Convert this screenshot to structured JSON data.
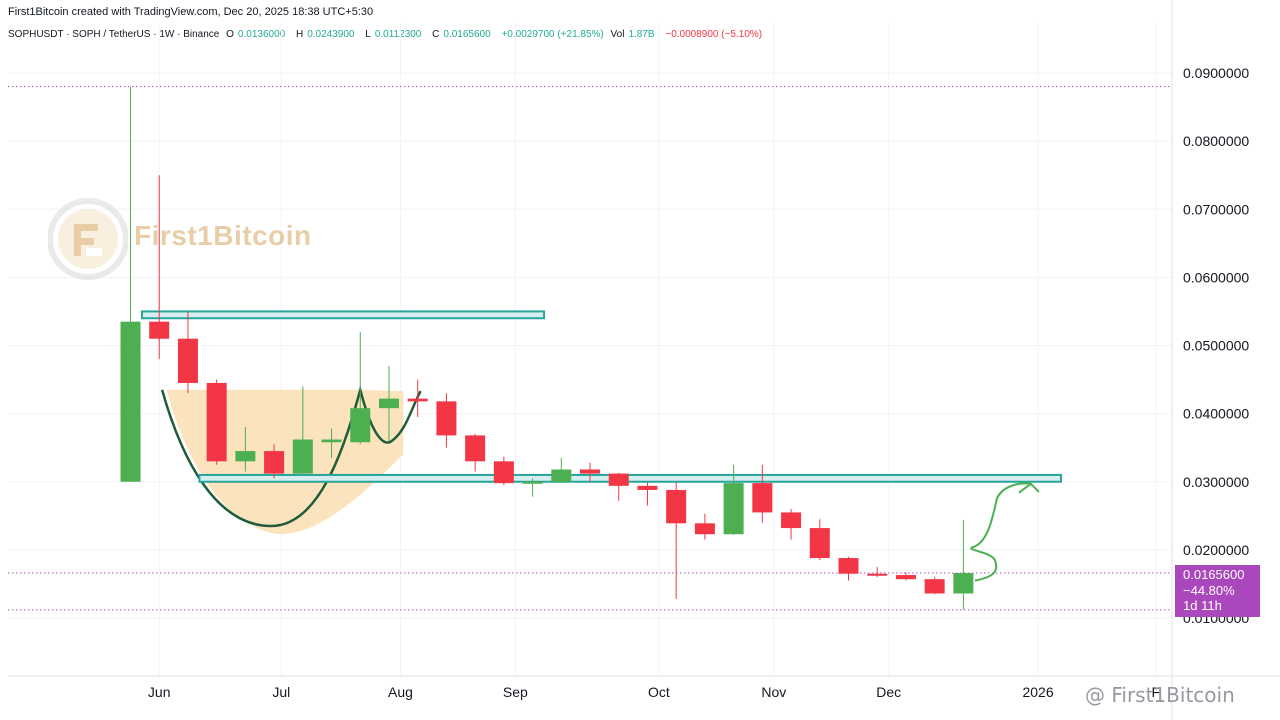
{
  "header": {
    "text": "First1Bitcoin created with TradingView.com, Dec 20, 2025 18:38 UTC+5:30"
  },
  "legend": {
    "symbol": "SOPHUSDT · SOPH / TetherUS · 1W · Binance",
    "o_label": "O",
    "o_value": "0.0136000",
    "h_label": "H",
    "h_value": "0.0243900",
    "l_label": "L",
    "l_value": "0.0112300",
    "c_label": "C",
    "c_value": "0.0165600",
    "change": "+0.0029700 (+21.85%)",
    "vol_label": "Vol",
    "vol_value": "1.87B",
    "vol_change": "−0.0008900 (−5.10%)"
  },
  "watermark": {
    "text": "First1Bitcoin"
  },
  "footer_watermark": {
    "text": "@ First1Bitcoin"
  },
  "price_badge": {
    "price": "0.0165600",
    "change": "−44.80%",
    "countdown": "1d 11h"
  },
  "colors": {
    "up": "#4caf50",
    "down": "#f23645",
    "zone": "#26a69a",
    "cup_fill": "#fbe3bd",
    "badge": "#ab47bc",
    "dotted": "#9c27b0"
  },
  "chart_data": {
    "type": "candlestick",
    "timeframe": "1W",
    "y_ticks": [
      0.09,
      0.08,
      0.07,
      0.06,
      0.05,
      0.04,
      0.03,
      0.02,
      0.01
    ],
    "y_tick_labels": [
      "0.0900000",
      "0.0800000",
      "0.0700000",
      "0.0600000",
      "0.0500000",
      "0.0400000",
      "0.0300000",
      "0.0200000",
      "0.0100000"
    ],
    "ylim": [
      0.0,
      0.098
    ],
    "x_labels": [
      {
        "label": "Jun",
        "week": 1
      },
      {
        "label": "Jul",
        "week": 5.25
      },
      {
        "label": "Aug",
        "week": 9.4
      },
      {
        "label": "Sep",
        "week": 13.4
      },
      {
        "label": "Oct",
        "week": 18.4
      },
      {
        "label": "Nov",
        "week": 22.4
      },
      {
        "label": "Dec",
        "week": 26.4
      },
      {
        "label": "2026",
        "week": 31.6
      },
      {
        "label": "F",
        "week": 35.7
      }
    ],
    "candles": [
      {
        "o": 0.03,
        "h": 0.088,
        "l": 0.03,
        "c": 0.0535
      },
      {
        "o": 0.0535,
        "h": 0.075,
        "l": 0.048,
        "c": 0.051
      },
      {
        "o": 0.051,
        "h": 0.055,
        "l": 0.043,
        "c": 0.0445
      },
      {
        "o": 0.0445,
        "h": 0.045,
        "l": 0.0325,
        "c": 0.033
      },
      {
        "o": 0.033,
        "h": 0.038,
        "l": 0.0315,
        "c": 0.0345
      },
      {
        "o": 0.0345,
        "h": 0.0355,
        "l": 0.0305,
        "c": 0.0312
      },
      {
        "o": 0.0312,
        "h": 0.044,
        "l": 0.031,
        "c": 0.0362
      },
      {
        "o": 0.0358,
        "h": 0.0378,
        "l": 0.0335,
        "c": 0.0362
      },
      {
        "o": 0.0358,
        "h": 0.052,
        "l": 0.0355,
        "c": 0.0408
      },
      {
        "o": 0.0408,
        "h": 0.047,
        "l": 0.036,
        "c": 0.0422
      },
      {
        "o": 0.0422,
        "h": 0.045,
        "l": 0.0395,
        "c": 0.0418
      },
      {
        "o": 0.0418,
        "h": 0.043,
        "l": 0.035,
        "c": 0.0368
      },
      {
        "o": 0.0368,
        "h": 0.037,
        "l": 0.0315,
        "c": 0.033
      },
      {
        "o": 0.033,
        "h": 0.0337,
        "l": 0.0295,
        "c": 0.0298
      },
      {
        "o": 0.0298,
        "h": 0.0305,
        "l": 0.0278,
        "c": 0.03
      },
      {
        "o": 0.03,
        "h": 0.0335,
        "l": 0.0298,
        "c": 0.0318
      },
      {
        "o": 0.0318,
        "h": 0.0328,
        "l": 0.03,
        "c": 0.0312
      },
      {
        "o": 0.0312,
        "h": 0.0313,
        "l": 0.0272,
        "c": 0.0294
      },
      {
        "o": 0.0294,
        "h": 0.0299,
        "l": 0.0265,
        "c": 0.0288
      },
      {
        "o": 0.0288,
        "h": 0.0299,
        "l": 0.0128,
        "c": 0.0239
      },
      {
        "o": 0.0239,
        "h": 0.0253,
        "l": 0.0215,
        "c": 0.0223
      },
      {
        "o": 0.0223,
        "h": 0.0325,
        "l": 0.0222,
        "c": 0.0298
      },
      {
        "o": 0.0298,
        "h": 0.0325,
        "l": 0.024,
        "c": 0.0255
      },
      {
        "o": 0.0255,
        "h": 0.026,
        "l": 0.0215,
        "c": 0.0232
      },
      {
        "o": 0.0232,
        "h": 0.0245,
        "l": 0.0185,
        "c": 0.0188
      },
      {
        "o": 0.0188,
        "h": 0.019,
        "l": 0.0155,
        "c": 0.0165
      },
      {
        "o": 0.0165,
        "h": 0.0175,
        "l": 0.016,
        "c": 0.0163
      },
      {
        "o": 0.0163,
        "h": 0.0167,
        "l": 0.0155,
        "c": 0.0157
      },
      {
        "o": 0.0157,
        "h": 0.016,
        "l": 0.0135,
        "c": 0.0136
      },
      {
        "o": 0.0136,
        "h": 0.0244,
        "l": 0.0112,
        "c": 0.0166
      }
    ],
    "zones": [
      {
        "name": "resistance-top",
        "x0_week": 0.4,
        "x1_week": 14.4,
        "y0": 0.054,
        "y1": 0.055
      },
      {
        "name": "neckline-support",
        "x0_week": 2.4,
        "x1_week": 32.4,
        "y0": 0.03,
        "y1": 0.031
      }
    ],
    "dotted_levels": [
      0.088,
      0.0166,
      0.0112
    ],
    "current_price": 0.0166,
    "grid": true,
    "price_axis": "right"
  }
}
